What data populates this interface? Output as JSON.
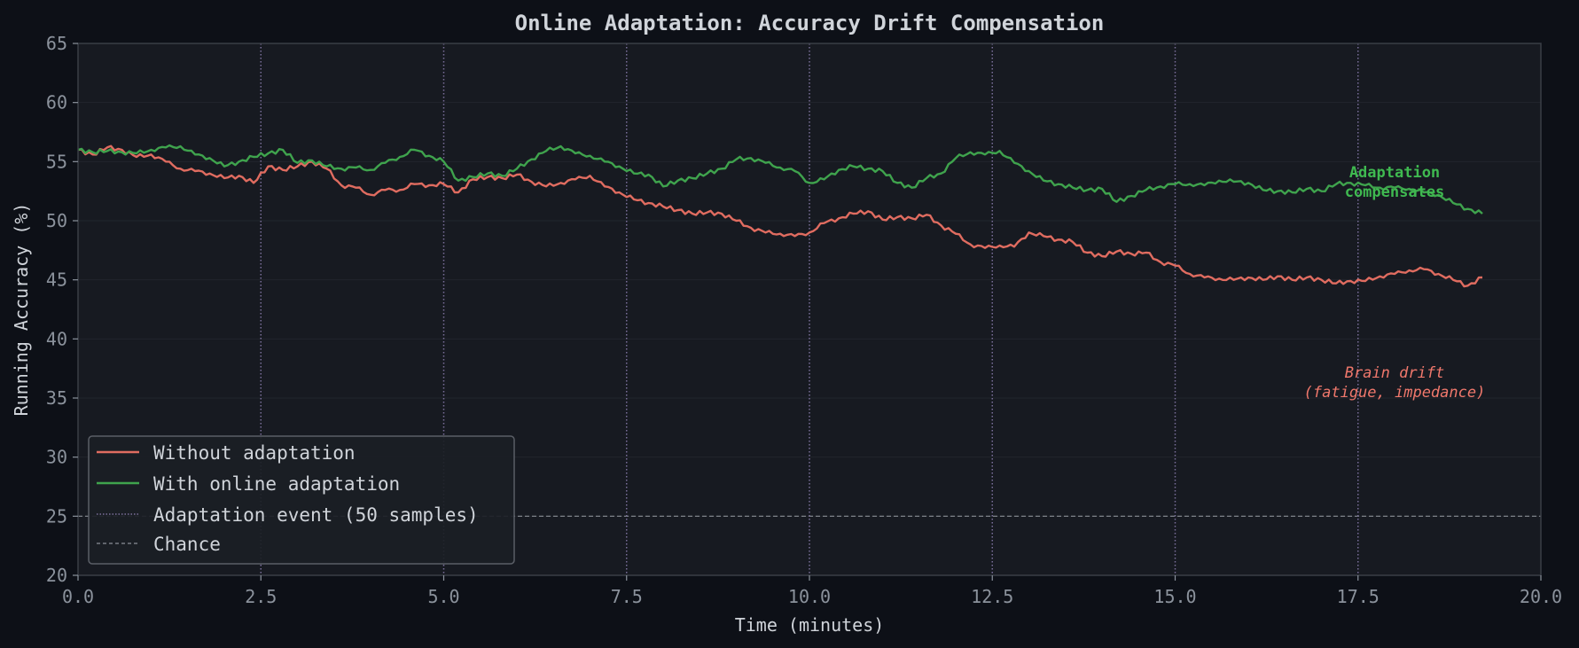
{
  "chart_data": {
    "type": "line",
    "title": "Online Adaptation: Accuracy Drift Compensation",
    "xlabel": "Time (minutes)",
    "ylabel": "Running Accuracy (%)",
    "xlim": [
      0,
      20
    ],
    "ylim": [
      20,
      65
    ],
    "x_ticks": [
      "0.0",
      "2.5",
      "5.0",
      "7.5",
      "10.0",
      "12.5",
      "15.0",
      "17.5",
      "20.0"
    ],
    "y_ticks": [
      "20",
      "25",
      "30",
      "35",
      "40",
      "45",
      "50",
      "55",
      "60",
      "65"
    ],
    "grid": "horizontal, subtle",
    "legend_position": "lower left",
    "series": [
      {
        "name": "Without adaptation",
        "color": "#e06c60",
        "x": [
          0.0,
          0.2,
          0.4,
          0.6,
          0.8,
          1.0,
          1.2,
          1.4,
          1.6,
          1.8,
          2.0,
          2.2,
          2.4,
          2.6,
          2.8,
          3.0,
          3.2,
          3.4,
          3.6,
          3.8,
          4.0,
          4.2,
          4.4,
          4.6,
          4.8,
          5.0,
          5.2,
          5.4,
          5.6,
          5.8,
          6.0,
          6.2,
          6.4,
          6.6,
          6.8,
          7.0,
          7.2,
          7.4,
          7.6,
          7.8,
          8.0,
          8.2,
          8.4,
          8.6,
          8.8,
          9.0,
          9.2,
          9.4,
          9.6,
          9.8,
          10.0,
          10.2,
          10.4,
          10.6,
          10.8,
          11.0,
          11.2,
          11.4,
          11.6,
          11.8,
          12.0,
          12.2,
          12.4,
          12.6,
          12.8,
          13.0,
          13.2,
          13.4,
          13.6,
          13.8,
          14.0,
          14.2,
          14.4,
          14.6,
          14.8,
          15.0,
          15.2,
          15.4,
          15.6,
          15.8,
          16.0,
          16.2,
          16.4,
          16.6,
          16.8,
          17.0,
          17.2,
          17.4,
          17.6,
          17.8,
          18.0,
          18.2,
          18.4,
          18.6,
          18.8,
          19.0,
          19.2
        ],
        "values": [
          56.0,
          55.6,
          56.2,
          56.0,
          55.4,
          55.6,
          55.0,
          54.4,
          54.2,
          54.0,
          53.6,
          53.8,
          53.2,
          54.6,
          54.3,
          54.6,
          55.0,
          54.4,
          53.0,
          52.8,
          52.2,
          52.6,
          52.6,
          53.1,
          53.0,
          53.1,
          52.4,
          53.5,
          53.7,
          53.6,
          53.9,
          53.3,
          52.9,
          53.2,
          53.5,
          53.8,
          52.9,
          52.4,
          51.8,
          51.5,
          51.2,
          50.9,
          50.6,
          50.7,
          50.6,
          50.0,
          49.4,
          49.0,
          48.9,
          48.7,
          49.0,
          49.8,
          50.2,
          50.6,
          50.8,
          50.1,
          50.3,
          50.2,
          50.5,
          49.6,
          48.9,
          48.0,
          47.7,
          47.9,
          47.8,
          49.0,
          48.7,
          48.4,
          48.2,
          47.3,
          47.0,
          47.4,
          47.2,
          47.3,
          46.5,
          46.2,
          45.5,
          45.2,
          45.1,
          45.0,
          45.2,
          45.0,
          45.3,
          45.0,
          45.2,
          45.0,
          44.7,
          44.9,
          44.9,
          45.3,
          45.5,
          45.8,
          45.9,
          45.5,
          45.0,
          44.5,
          45.2
        ]
      },
      {
        "name": "With online adaptation",
        "color": "#3fa34d",
        "x": [
          0.0,
          0.2,
          0.4,
          0.6,
          0.8,
          1.0,
          1.2,
          1.4,
          1.6,
          1.8,
          2.0,
          2.2,
          2.4,
          2.6,
          2.8,
          3.0,
          3.2,
          3.4,
          3.6,
          3.8,
          4.0,
          4.2,
          4.4,
          4.6,
          4.8,
          5.0,
          5.2,
          5.4,
          5.6,
          5.8,
          6.0,
          6.2,
          6.4,
          6.6,
          6.8,
          7.0,
          7.2,
          7.4,
          7.6,
          7.8,
          8.0,
          8.2,
          8.4,
          8.6,
          8.8,
          9.0,
          9.2,
          9.4,
          9.6,
          9.8,
          10.0,
          10.2,
          10.4,
          10.6,
          10.8,
          11.0,
          11.2,
          11.4,
          11.6,
          11.8,
          12.0,
          12.2,
          12.4,
          12.6,
          12.8,
          13.0,
          13.2,
          13.4,
          13.6,
          13.8,
          14.0,
          14.2,
          14.4,
          14.6,
          14.8,
          15.0,
          15.2,
          15.4,
          15.6,
          15.8,
          16.0,
          16.2,
          16.4,
          16.6,
          16.8,
          17.0,
          17.2,
          17.4,
          17.6,
          17.8,
          18.0,
          18.2,
          18.4,
          18.6,
          18.8,
          19.0,
          19.2
        ],
        "values": [
          56.0,
          55.8,
          55.9,
          55.8,
          55.7,
          56.0,
          56.2,
          56.3,
          55.6,
          55.3,
          54.6,
          55.0,
          55.4,
          55.7,
          56.0,
          54.9,
          55.1,
          54.6,
          54.4,
          54.5,
          54.3,
          54.9,
          55.4,
          56.0,
          55.5,
          55.0,
          53.4,
          53.7,
          54.0,
          53.8,
          54.4,
          55.2,
          55.9,
          56.3,
          55.7,
          55.5,
          55.0,
          54.6,
          54.0,
          53.9,
          52.9,
          53.4,
          53.6,
          54.0,
          54.4,
          55.2,
          55.3,
          54.9,
          54.5,
          54.2,
          53.2,
          53.5,
          54.3,
          54.6,
          54.4,
          54.2,
          53.2,
          52.8,
          53.6,
          54.0,
          55.3,
          55.8,
          55.6,
          55.9,
          54.9,
          54.2,
          53.4,
          53.1,
          52.8,
          52.6,
          52.7,
          51.6,
          52.1,
          52.6,
          52.9,
          53.1,
          53.1,
          53.0,
          53.4,
          53.3,
          53.2,
          52.6,
          52.5,
          52.4,
          52.7,
          52.5,
          53.1,
          53.2,
          53.0,
          52.8,
          52.8,
          52.7,
          52.4,
          52.2,
          51.5,
          51.0,
          50.6
        ]
      },
      {
        "name": "Adaptation event (50 samples)",
        "color": "#7a6f9a",
        "style": "dotted vertical",
        "x": [
          2.5,
          5.0,
          7.5,
          10.0,
          12.5,
          15.0,
          17.5
        ]
      },
      {
        "name": "Chance",
        "color": "#8b8f96",
        "style": "dashed horizontal",
        "y": 25
      }
    ],
    "annotations": [
      {
        "text": [
          "Adaptation",
          "compensates"
        ],
        "color": "#3fb950",
        "x": 18.0,
        "y": 52.9
      },
      {
        "text": [
          "Brain drift",
          "(fatigue, impedance)"
        ],
        "color": "#f0786c",
        "x": 18.0,
        "y": 35.8
      }
    ]
  },
  "labels": {
    "title": "Online Adaptation: Accuracy Drift Compensation",
    "xlabel": "Time (minutes)",
    "ylabel": "Running Accuracy (%)",
    "legend": [
      "Without adaptation",
      "With online adaptation",
      "Adaptation event (50 samples)",
      "Chance"
    ],
    "annot_green_1": "Adaptation",
    "annot_green_2": "compensates",
    "annot_red_1": "Brain drift",
    "annot_red_2": "(fatigue, impedance)"
  }
}
